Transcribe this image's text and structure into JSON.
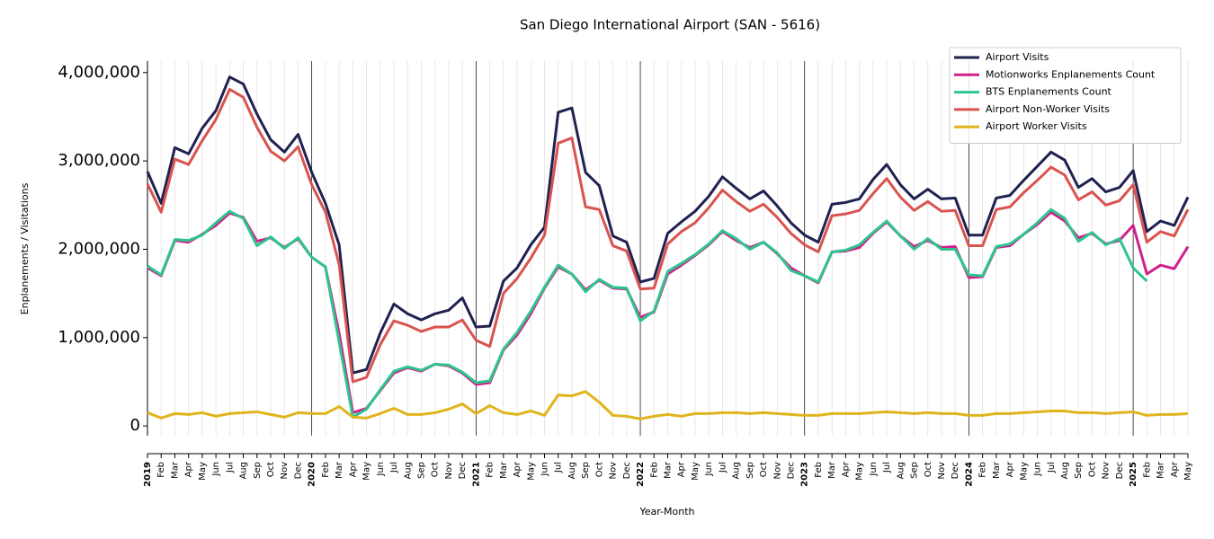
{
  "chart_data": {
    "type": "line",
    "title": "San Diego International Airport (SAN - 5616)",
    "x_label": "Year-Month",
    "y_label": "Enplanements / Visitations",
    "categories": [
      "2019",
      "Feb",
      "Mar",
      "Apr",
      "May",
      "Jun",
      "Jul",
      "Aug",
      "Sep",
      "Oct",
      "Nov",
      "Dec",
      "2020",
      "Feb",
      "Mar",
      "Apr",
      "May",
      "Jun",
      "Jul",
      "Aug",
      "Sep",
      "Oct",
      "Nov",
      "Dec",
      "2021",
      "Feb",
      "Mar",
      "Apr",
      "May",
      "Jun",
      "Jul",
      "Aug",
      "Sep",
      "Oct",
      "Nov",
      "Dec",
      "2022",
      "Feb",
      "Mar",
      "Apr",
      "May",
      "Jun",
      "Jul",
      "Aug",
      "Sep",
      "Oct",
      "Nov",
      "Dec",
      "2023",
      "Feb",
      "Mar",
      "Apr",
      "May",
      "Jun",
      "Jul",
      "Aug",
      "Sep",
      "Oct",
      "Nov",
      "Dec",
      "2024",
      "Feb",
      "Mar",
      "Apr",
      "May",
      "Jun",
      "Jul",
      "Aug",
      "Sep",
      "Oct",
      "Nov",
      "Dec",
      "2025",
      "Feb",
      "Mar",
      "Apr",
      "May"
    ],
    "series": [
      {
        "name": "Airport Visits",
        "color": "#1f2150",
        "values": [
          2880000,
          2520000,
          3150000,
          3080000,
          3370000,
          3570000,
          3950000,
          3870000,
          3530000,
          3240000,
          3100000,
          3300000,
          2870000,
          2520000,
          2050000,
          600000,
          640000,
          1050000,
          1380000,
          1270000,
          1200000,
          1270000,
          1310000,
          1450000,
          1120000,
          1130000,
          1640000,
          1790000,
          2050000,
          2250000,
          3550000,
          3600000,
          2870000,
          2720000,
          2150000,
          2080000,
          1630000,
          1670000,
          2180000,
          2310000,
          2430000,
          2600000,
          2820000,
          2690000,
          2570000,
          2660000,
          2490000,
          2300000,
          2160000,
          2080000,
          2510000,
          2530000,
          2570000,
          2790000,
          2960000,
          2730000,
          2570000,
          2680000,
          2570000,
          2580000,
          2160000,
          2160000,
          2580000,
          2610000,
          2780000,
          2940000,
          3100000,
          3010000,
          2700000,
          2800000,
          2650000,
          2700000,
          2890000,
          2200000,
          2320000,
          2270000,
          2590000
        ]
      },
      {
        "name": "Motionworks Enplanements Count",
        "color": "#d0208a",
        "values": [
          1790000,
          1700000,
          2100000,
          2080000,
          2170000,
          2270000,
          2410000,
          2360000,
          2090000,
          2130000,
          2020000,
          2120000,
          1910000,
          1800000,
          1050000,
          150000,
          200000,
          400000,
          600000,
          660000,
          620000,
          700000,
          680000,
          600000,
          470000,
          490000,
          860000,
          1030000,
          1270000,
          1560000,
          1800000,
          1720000,
          1540000,
          1650000,
          1560000,
          1550000,
          1230000,
          1290000,
          1720000,
          1820000,
          1930000,
          2050000,
          2200000,
          2100000,
          2020000,
          2080000,
          1950000,
          1790000,
          1700000,
          1620000,
          1970000,
          1980000,
          2020000,
          2180000,
          2310000,
          2150000,
          2030000,
          2100000,
          2020000,
          2030000,
          1680000,
          1690000,
          2020000,
          2040000,
          2170000,
          2280000,
          2420000,
          2320000,
          2130000,
          2180000,
          2060000,
          2100000,
          2270000,
          1720000,
          1820000,
          1780000,
          2030000
        ]
      },
      {
        "name": "BTS Enplanements Count",
        "color": "#2ec48f",
        "values": [
          1810000,
          1710000,
          2110000,
          2100000,
          2160000,
          2300000,
          2430000,
          2350000,
          2040000,
          2140000,
          2010000,
          2130000,
          1910000,
          1800000,
          950000,
          100000,
          190000,
          410000,
          620000,
          670000,
          630000,
          700000,
          690000,
          610000,
          490000,
          510000,
          870000,
          1060000,
          1300000,
          1570000,
          1820000,
          1720000,
          1520000,
          1660000,
          1570000,
          1560000,
          1190000,
          1300000,
          1750000,
          1840000,
          1940000,
          2060000,
          2210000,
          2120000,
          2000000,
          2080000,
          1960000,
          1760000,
          1700000,
          1630000,
          1970000,
          1990000,
          2050000,
          2190000,
          2320000,
          2150000,
          2000000,
          2120000,
          2000000,
          2000000,
          1710000,
          1700000,
          2030000,
          2060000,
          2170000,
          2300000,
          2450000,
          2350000,
          2090000,
          2190000,
          2050000,
          2120000,
          1790000,
          1640000,
          null,
          null,
          null
        ]
      },
      {
        "name": "Airport Non-Worker Visits",
        "color": "#d9534f",
        "values": [
          2740000,
          2420000,
          3020000,
          2960000,
          3230000,
          3470000,
          3810000,
          3720000,
          3380000,
          3110000,
          3000000,
          3160000,
          2730000,
          2420000,
          1830000,
          500000,
          550000,
          920000,
          1190000,
          1140000,
          1070000,
          1120000,
          1120000,
          1200000,
          970000,
          900000,
          1500000,
          1670000,
          1900000,
          2160000,
          3200000,
          3260000,
          2480000,
          2450000,
          2040000,
          1980000,
          1550000,
          1560000,
          2060000,
          2200000,
          2300000,
          2470000,
          2670000,
          2540000,
          2430000,
          2510000,
          2360000,
          2180000,
          2050000,
          1970000,
          2380000,
          2400000,
          2440000,
          2630000,
          2800000,
          2590000,
          2440000,
          2540000,
          2430000,
          2440000,
          2040000,
          2040000,
          2450000,
          2480000,
          2640000,
          2780000,
          2930000,
          2840000,
          2560000,
          2650000,
          2500000,
          2550000,
          2730000,
          2080000,
          2200000,
          2150000,
          2450000
        ]
      },
      {
        "name": "Airport Worker Visits",
        "color": "#e0b41c",
        "values": [
          150000,
          90000,
          140000,
          130000,
          150000,
          110000,
          140000,
          150000,
          160000,
          130000,
          100000,
          150000,
          140000,
          140000,
          220000,
          100000,
          90000,
          140000,
          200000,
          130000,
          130000,
          150000,
          190000,
          250000,
          140000,
          230000,
          150000,
          130000,
          170000,
          120000,
          350000,
          340000,
          390000,
          270000,
          120000,
          110000,
          80000,
          110000,
          130000,
          110000,
          140000,
          140000,
          150000,
          150000,
          140000,
          150000,
          140000,
          130000,
          120000,
          120000,
          140000,
          140000,
          140000,
          150000,
          160000,
          150000,
          140000,
          150000,
          140000,
          140000,
          120000,
          120000,
          140000,
          140000,
          150000,
          160000,
          170000,
          170000,
          150000,
          150000,
          140000,
          150000,
          160000,
          120000,
          130000,
          130000,
          140000
        ]
      }
    ],
    "ylim": [
      -110000,
      4130000
    ],
    "yticks": [
      0,
      {
        "value": 1000000,
        "label": "1,000,000"
      },
      {
        "value": 2000000,
        "label": "2,000,000"
      },
      {
        "value": 3000000,
        "label": "3,000,000"
      },
      {
        "value": 4000000,
        "label": "4,000,000"
      }
    ],
    "grid": true,
    "legend": "upper right"
  }
}
